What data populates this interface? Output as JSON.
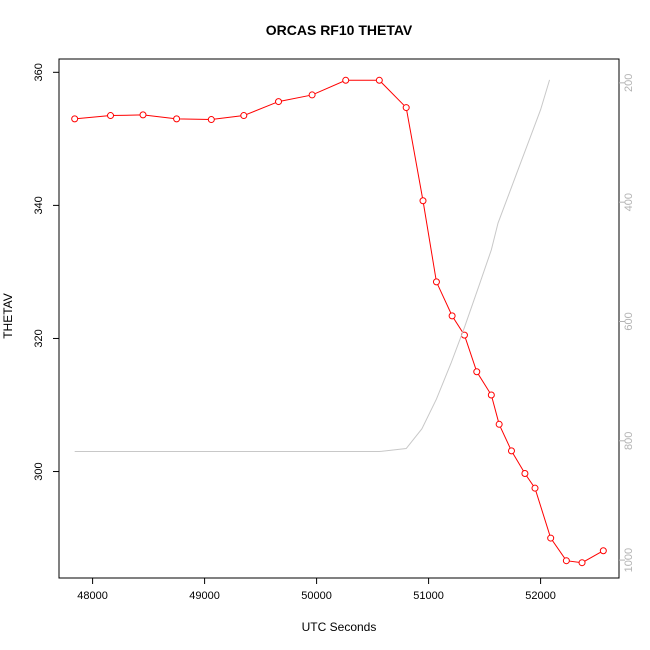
{
  "chart_data": {
    "type": "line",
    "title": "ORCAS RF10 THETAV",
    "xlabel": "UTC Seconds",
    "ylabel": "THETAV",
    "xlim": [
      47700,
      52700
    ],
    "ylim": [
      284,
      362
    ],
    "y2lim": [
      1030,
      160
    ],
    "xticks": [
      48000,
      49000,
      50000,
      51000,
      52000
    ],
    "yticks": [
      300,
      320,
      340,
      360
    ],
    "y2ticks": [
      200,
      400,
      600,
      800,
      1000
    ],
    "grid": false,
    "colors": {
      "primary": "#ff0000",
      "secondary": "#c8c8c8",
      "secondary_ticks": "#b3b3b3",
      "axis": "#000000"
    },
    "series": [
      {
        "axis": "left",
        "style": "line+markers",
        "x": [
          47840,
          48160,
          48450,
          48750,
          49060,
          49350,
          49660,
          49960,
          50260,
          50560,
          50800,
          50950,
          51070,
          51210,
          51320,
          51430,
          51560,
          51630,
          51740,
          51860,
          51950,
          52090,
          52230,
          52370,
          52560
        ],
        "y": [
          353.0,
          353.5,
          353.6,
          353.0,
          352.9,
          353.5,
          355.6,
          356.6,
          358.8,
          358.8,
          354.7,
          340.7,
          328.5,
          323.4,
          320.5,
          315.0,
          311.5,
          307.1,
          303.1,
          299.7,
          297.5,
          290.0,
          286.6,
          286.3,
          288.1
        ]
      },
      {
        "axis": "right",
        "style": "line",
        "x": [
          47840,
          48500,
          49500,
          50000,
          50560,
          50800,
          50940,
          51070,
          51200,
          51320,
          51450,
          51560,
          51620,
          51700,
          51800,
          51900,
          52000,
          52080
        ],
        "y": [
          818,
          818,
          818,
          818,
          818,
          813,
          780,
          730,
          670,
          610,
          540,
          480,
          435,
          395,
          345,
          295,
          245,
          195
        ]
      }
    ]
  }
}
